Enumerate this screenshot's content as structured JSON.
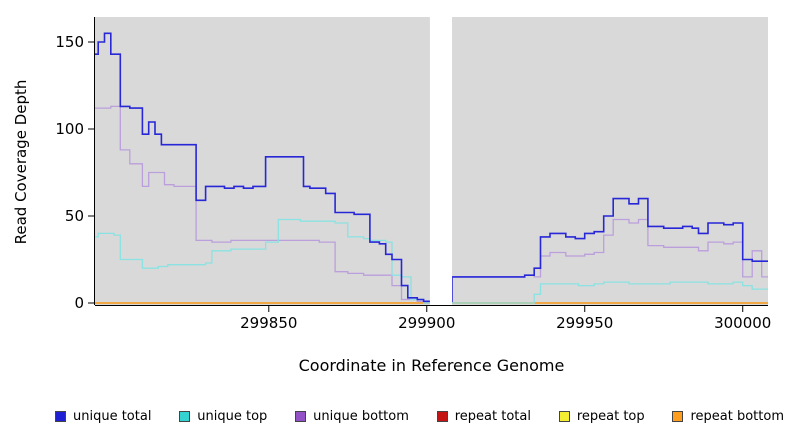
{
  "chart_data": {
    "type": "line",
    "step": true,
    "title": "",
    "xlabel": "Coordinate in Reference Genome",
    "ylabel": "Read Coverage Depth",
    "xlim": [
      299795,
      300008
    ],
    "ylim": [
      0,
      160
    ],
    "x_ticks": [
      299850,
      299900,
      299950,
      300000
    ],
    "y_ticks": [
      0,
      50,
      100,
      150
    ],
    "grid": false,
    "plot_bg": "#d9d9d9",
    "gap_region": {
      "start": 299901,
      "end": 299908,
      "color": "#ffffff"
    },
    "series": [
      {
        "name": "repeat total",
        "color": "#c41414",
        "width": 1.3,
        "points": [
          [
            299795,
            0
          ],
          [
            300008,
            0
          ]
        ]
      },
      {
        "name": "repeat top",
        "color": "#f4ee33",
        "width": 1.3,
        "points": [
          [
            299795,
            0
          ],
          [
            300008,
            0
          ]
        ]
      },
      {
        "name": "repeat bottom",
        "color": "#ff9d1e",
        "width": 1.3,
        "points": [
          [
            299795,
            0
          ],
          [
            300008,
            0
          ]
        ]
      },
      {
        "name": "unique bottom",
        "color": "#bb9fdc",
        "width": 1.3,
        "points": [
          [
            299795,
            112
          ],
          [
            299800,
            113
          ],
          [
            299803,
            88
          ],
          [
            299806,
            80
          ],
          [
            299810,
            67
          ],
          [
            299812,
            75
          ],
          [
            299816,
            75
          ],
          [
            299817,
            68
          ],
          [
            299820,
            67
          ],
          [
            299827,
            36
          ],
          [
            299832,
            35
          ],
          [
            299838,
            36
          ],
          [
            299845,
            36
          ],
          [
            299853,
            36
          ],
          [
            299861,
            36
          ],
          [
            299866,
            35
          ],
          [
            299871,
            18
          ],
          [
            299875,
            17
          ],
          [
            299880,
            16
          ],
          [
            299887,
            16
          ],
          [
            299889,
            10
          ],
          [
            299892,
            2
          ],
          [
            299897,
            1
          ],
          [
            299899,
            0
          ],
          [
            299908,
            15
          ],
          [
            299931,
            16
          ],
          [
            299934,
            15
          ],
          [
            299936,
            27
          ],
          [
            299939,
            29
          ],
          [
            299944,
            27
          ],
          [
            299950,
            28
          ],
          [
            299953,
            29
          ],
          [
            299956,
            39
          ],
          [
            299959,
            48
          ],
          [
            299964,
            46
          ],
          [
            299967,
            48
          ],
          [
            299970,
            33
          ],
          [
            299975,
            32
          ],
          [
            299984,
            32
          ],
          [
            299986,
            30
          ],
          [
            299989,
            35
          ],
          [
            299994,
            34
          ],
          [
            299997,
            35
          ],
          [
            300000,
            15
          ],
          [
            300003,
            30
          ],
          [
            300006,
            15
          ],
          [
            300008,
            15
          ]
        ]
      },
      {
        "name": "unique top",
        "color": "#8ae2e2",
        "width": 1.3,
        "points": [
          [
            299795,
            38
          ],
          [
            299796,
            40
          ],
          [
            299801,
            39
          ],
          [
            299803,
            25
          ],
          [
            299810,
            20
          ],
          [
            299815,
            21
          ],
          [
            299818,
            22
          ],
          [
            299830,
            23
          ],
          [
            299832,
            30
          ],
          [
            299838,
            31
          ],
          [
            299845,
            31
          ],
          [
            299849,
            35
          ],
          [
            299853,
            48
          ],
          [
            299860,
            47
          ],
          [
            299868,
            47
          ],
          [
            299871,
            46
          ],
          [
            299875,
            38
          ],
          [
            299880,
            37
          ],
          [
            299882,
            36
          ],
          [
            299887,
            35
          ],
          [
            299889,
            16
          ],
          [
            299892,
            15
          ],
          [
            299895,
            2
          ],
          [
            299899,
            0
          ],
          [
            299908,
            0
          ],
          [
            299934,
            5
          ],
          [
            299936,
            11
          ],
          [
            299948,
            10
          ],
          [
            299953,
            11
          ],
          [
            299956,
            12
          ],
          [
            299964,
            11
          ],
          [
            299977,
            12
          ],
          [
            299984,
            12
          ],
          [
            299989,
            11
          ],
          [
            299997,
            12
          ],
          [
            300000,
            10
          ],
          [
            300003,
            8
          ],
          [
            300008,
            8
          ]
        ]
      },
      {
        "name": "unique total",
        "color": "#2727d8",
        "width": 1.6,
        "points": [
          [
            299795,
            143
          ],
          [
            299796,
            150
          ],
          [
            299798,
            155
          ],
          [
            299800,
            143
          ],
          [
            299803,
            113
          ],
          [
            299806,
            112
          ],
          [
            299810,
            97
          ],
          [
            299812,
            104
          ],
          [
            299814,
            97
          ],
          [
            299816,
            91
          ],
          [
            299827,
            59
          ],
          [
            299830,
            67
          ],
          [
            299836,
            66
          ],
          [
            299839,
            67
          ],
          [
            299842,
            66
          ],
          [
            299845,
            67
          ],
          [
            299849,
            84
          ],
          [
            299861,
            67
          ],
          [
            299863,
            66
          ],
          [
            299868,
            63
          ],
          [
            299871,
            52
          ],
          [
            299877,
            51
          ],
          [
            299882,
            35
          ],
          [
            299885,
            34
          ],
          [
            299887,
            28
          ],
          [
            299889,
            25
          ],
          [
            299892,
            10
          ],
          [
            299894,
            3
          ],
          [
            299897,
            2
          ],
          [
            299899,
            1
          ],
          [
            299908,
            15
          ],
          [
            299931,
            16
          ],
          [
            299934,
            20
          ],
          [
            299936,
            38
          ],
          [
            299939,
            40
          ],
          [
            299944,
            38
          ],
          [
            299947,
            37
          ],
          [
            299950,
            40
          ],
          [
            299953,
            41
          ],
          [
            299956,
            50
          ],
          [
            299959,
            60
          ],
          [
            299964,
            57
          ],
          [
            299967,
            60
          ],
          [
            299970,
            44
          ],
          [
            299975,
            43
          ],
          [
            299981,
            44
          ],
          [
            299984,
            43
          ],
          [
            299986,
            40
          ],
          [
            299989,
            46
          ],
          [
            299994,
            45
          ],
          [
            299997,
            46
          ],
          [
            300000,
            25
          ],
          [
            300003,
            24
          ],
          [
            300008,
            24
          ]
        ]
      }
    ],
    "legend": [
      {
        "label": "unique total",
        "color": "#1f1fd3"
      },
      {
        "label": "unique top",
        "color": "#35d2d2"
      },
      {
        "label": "unique bottom",
        "color": "#9351c8"
      },
      {
        "label": "repeat total",
        "color": "#c41414"
      },
      {
        "label": "repeat top",
        "color": "#f4ee33"
      },
      {
        "label": "repeat bottom",
        "color": "#ff9d1e"
      }
    ],
    "legend_position": "bottom",
    "axis_color": "#000000",
    "tick_label_color": "#000000"
  }
}
